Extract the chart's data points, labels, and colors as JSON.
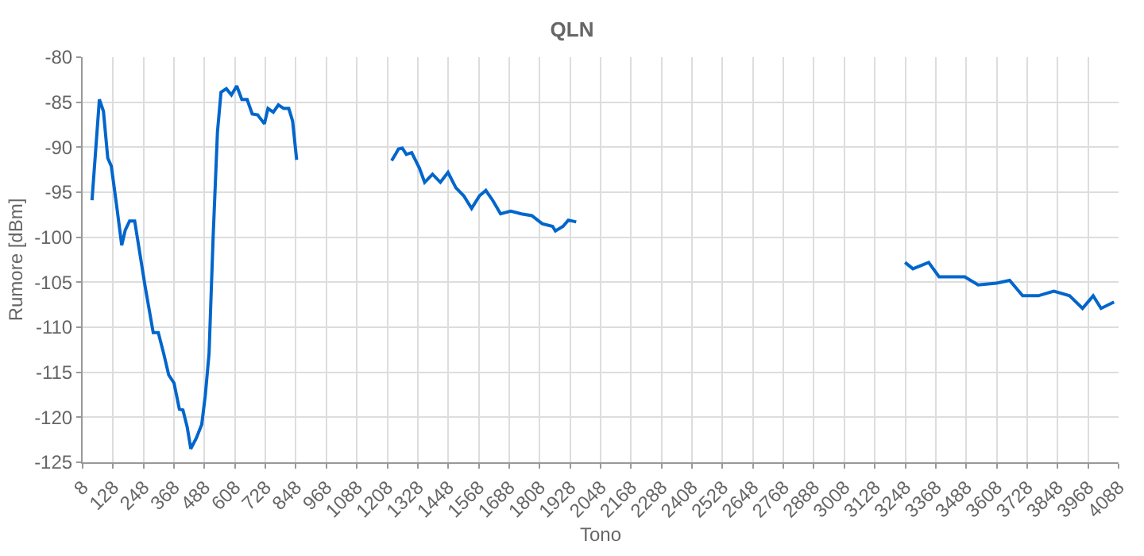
{
  "chart_data": {
    "type": "line",
    "title": "QLN",
    "xlabel": "Tono",
    "ylabel": "Rumore [dBm]",
    "x": [
      45,
      74,
      90,
      107,
      121,
      142,
      162,
      176,
      193,
      213,
      230,
      255,
      286,
      306,
      327,
      347,
      368,
      389,
      403,
      420,
      434,
      456,
      477,
      491,
      506,
      522,
      539,
      553,
      574,
      594,
      615,
      635,
      656,
      676,
      697,
      724,
      738,
      759,
      779,
      800,
      820,
      835,
      851,
      1040,
      1225,
      1242,
      1252,
      1267,
      1283,
      1304,
      1334,
      1355,
      1386,
      1417,
      1447,
      1478,
      1509,
      1540,
      1571,
      1596,
      1623,
      1654,
      1694,
      1736,
      1777,
      1818,
      1859,
      1870,
      1900,
      1921,
      1952,
      2600,
      3247,
      3278,
      3340,
      3381,
      3482,
      3535,
      3607,
      3659,
      3710,
      3772,
      3833,
      3895,
      3946,
      3988,
      4019,
      4070
    ],
    "series": [
      {
        "color": "#0066cc",
        "values": [
          -95.9,
          -84.7,
          -86,
          -91.2,
          -92.1,
          -96.5,
          -100.9,
          -99.2,
          -98.2,
          -98.2,
          -101.2,
          -105.6,
          -110.6,
          -110.6,
          -112.9,
          -115.3,
          -116.2,
          -119.1,
          -119.2,
          -121.1,
          -123.5,
          -122.3,
          -120.8,
          -117.6,
          -112.9,
          -100,
          -88.3,
          -83.9,
          -83.5,
          -84.2,
          -83.2,
          -84.7,
          -84.7,
          -86.3,
          -86.4,
          -87.4,
          -85.7,
          -86.1,
          -85.3,
          -85.7,
          -85.7,
          -87.1,
          -91.4,
          null,
          -91.5,
          -90.7,
          -90.2,
          -90.1,
          -90.8,
          -90.6,
          -92.3,
          -93.9,
          -93,
          -93.9,
          -92.8,
          -94.5,
          -95.4,
          -96.8,
          -95.4,
          -94.8,
          -95.9,
          -97.4,
          -97.1,
          -97.4,
          -97.6,
          -98.5,
          -98.8,
          -99.3,
          -98.8,
          -98.1,
          -98.3,
          null,
          -102.8,
          -103.5,
          -102.8,
          -104.4,
          -104.4,
          -105.3,
          -105.1,
          -104.8,
          -106.5,
          -106.5,
          -106,
          -106.5,
          -107.9,
          -106.5,
          -107.9,
          -107.2
        ]
      }
    ],
    "xlim": [
      8,
      4088
    ],
    "xticks": [
      8,
      128,
      248,
      368,
      488,
      608,
      728,
      848,
      968,
      1088,
      1208,
      1328,
      1448,
      1568,
      1688,
      1808,
      1928,
      2048,
      2168,
      2288,
      2408,
      2528,
      2648,
      2768,
      2888,
      3008,
      3128,
      3248,
      3368,
      3488,
      3608,
      3728,
      3848,
      3968,
      4088
    ],
    "ylim": [
      -125,
      -80
    ],
    "yticks": [
      -125,
      -120,
      -115,
      -110,
      -105,
      -100,
      -95,
      -90,
      -85,
      -80
    ],
    "grid": true,
    "legend": false,
    "marker": "none",
    "line_style": "solid"
  }
}
